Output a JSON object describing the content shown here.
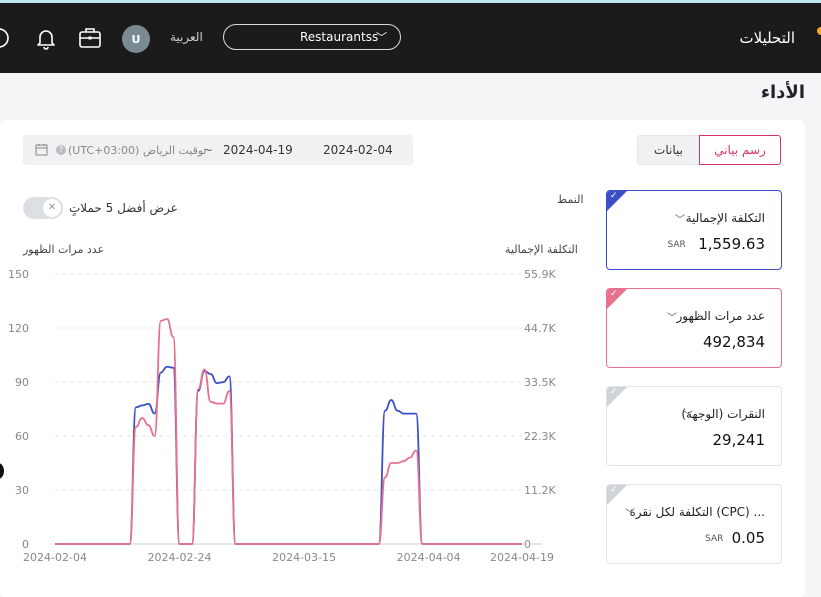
{
  "header": {
    "title": "التحليلات",
    "store_selector": "Restaurantss",
    "language": "العربية",
    "avatar_initial": "U"
  },
  "page": {
    "title": "الأداء",
    "tabs": {
      "chart": "رسم بياني",
      "data": "بيانات"
    },
    "date_range": {
      "start": "2024-02-04",
      "separator": "~",
      "end": "2024-04-19",
      "timezone": "(UTC+03:00) توقيت الرياض"
    },
    "pattern_label": "النمط",
    "top5_label": "عرض أفضل 5 حملاتٍ"
  },
  "chart_data": {
    "type": "line",
    "y_left_title": "عدد مرات الظهور",
    "y_right_title": "التكلفة الإجمالية",
    "y_left_ticks": [
      "150",
      "120",
      "90",
      "60",
      "30",
      "0"
    ],
    "y_right_ticks": [
      "55.9K",
      "44.7K",
      "33.5K",
      "22.3K",
      "11.2K",
      "0"
    ],
    "x_ticks": [
      "2024-02-04",
      "2024-02-24",
      "2024-03-15",
      "2024-04-04",
      "2024-04-19"
    ],
    "ylim_left": [
      0,
      150
    ],
    "ylim_right": [
      0,
      55900
    ],
    "x_range": [
      "2024-02-04",
      "2024-04-19"
    ],
    "series": [
      {
        "name": "التكلفة الإجمالية",
        "color": "#3d4fc7",
        "axis": "right",
        "points": [
          [
            "2024-02-04",
            0
          ],
          [
            "2024-02-16",
            0
          ],
          [
            "2024-02-17",
            28300
          ],
          [
            "2024-02-18",
            28700
          ],
          [
            "2024-02-19",
            29000
          ],
          [
            "2024-02-20",
            27000
          ],
          [
            "2024-02-21",
            35500
          ],
          [
            "2024-02-22",
            36700
          ],
          [
            "2024-02-23",
            36500
          ],
          [
            "2024-02-24",
            0
          ],
          [
            "2024-02-26",
            0
          ],
          [
            "2024-02-27",
            31700
          ],
          [
            "2024-02-28",
            35800
          ],
          [
            "2024-02-29",
            35200
          ],
          [
            "2024-03-01",
            33300
          ],
          [
            "2024-03-02",
            33500
          ],
          [
            "2024-03-03",
            34700
          ],
          [
            "2024-03-04",
            0
          ],
          [
            "2024-03-27",
            0
          ],
          [
            "2024-03-28",
            27600
          ],
          [
            "2024-03-29",
            29800
          ],
          [
            "2024-03-30",
            27600
          ],
          [
            "2024-03-31",
            27000
          ],
          [
            "2024-04-01",
            27000
          ],
          [
            "2024-04-02",
            27000
          ],
          [
            "2024-04-03",
            0
          ],
          [
            "2024-04-19",
            0
          ]
        ]
      },
      {
        "name": "عدد مرات الظهور",
        "color": "#e8718c",
        "axis": "left",
        "points": [
          [
            "2024-02-04",
            0
          ],
          [
            "2024-02-16",
            0
          ],
          [
            "2024-02-17",
            65
          ],
          [
            "2024-02-18",
            70
          ],
          [
            "2024-02-19",
            66
          ],
          [
            "2024-02-20",
            60
          ],
          [
            "2024-02-21",
            124
          ],
          [
            "2024-02-22",
            125
          ],
          [
            "2024-02-23",
            115
          ],
          [
            "2024-02-24",
            0
          ],
          [
            "2024-02-26",
            0
          ],
          [
            "2024-02-27",
            86
          ],
          [
            "2024-02-28",
            97
          ],
          [
            "2024-02-29",
            79
          ],
          [
            "2024-03-01",
            78
          ],
          [
            "2024-03-02",
            78
          ],
          [
            "2024-03-03",
            85
          ],
          [
            "2024-03-04",
            0
          ],
          [
            "2024-03-27",
            0
          ],
          [
            "2024-03-28",
            37
          ],
          [
            "2024-03-29",
            45
          ],
          [
            "2024-03-30",
            45
          ],
          [
            "2024-03-31",
            46
          ],
          [
            "2024-04-01",
            48
          ],
          [
            "2024-04-02",
            52
          ],
          [
            "2024-04-03",
            0
          ],
          [
            "2024-04-19",
            0
          ]
        ]
      }
    ]
  },
  "metrics": [
    {
      "label": "التكلفة الإجمالية",
      "value": "1,559.63",
      "unit": "SAR",
      "state": "selected",
      "color": "#3d4fc7"
    },
    {
      "label": "عدد مرات الظهور",
      "value": "492,834",
      "unit": "",
      "state": "selected",
      "color": "#e8718c"
    },
    {
      "label": "النقرات (الوجهة)",
      "value": "29,241",
      "unit": "",
      "state": "unselected",
      "color": "#d0d3d8"
    },
    {
      "label": "التكلفة لكل نقرة (CPC) ...",
      "value": "0.05",
      "unit": "SAR",
      "state": "unselected",
      "color": "#d0d3d8"
    }
  ]
}
